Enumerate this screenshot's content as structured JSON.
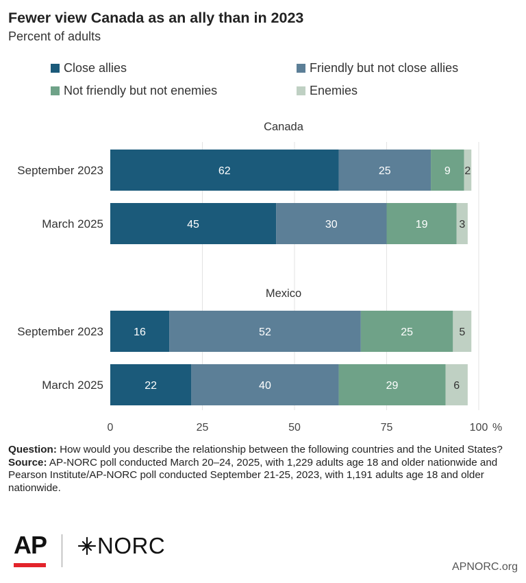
{
  "title": "Fewer view Canada as an ally than in 2023",
  "subtitle": "Percent of adults",
  "colors": {
    "close_allies": "#1b5a7a",
    "friendly": "#5c7f97",
    "not_friendly": "#6fa288",
    "enemies": "#bfd0c3"
  },
  "chart_data": {
    "type": "bar",
    "orientation": "horizontal",
    "stacked": true,
    "title": "Fewer view Canada as an ally than in 2023",
    "subtitle": "Percent of adults",
    "xlim": [
      0,
      100
    ],
    "xticks": [
      "0",
      "25",
      "50",
      "75",
      "100"
    ],
    "x_unit": "%",
    "grid": true,
    "legend_position": "top",
    "series_names": [
      "Close allies",
      "Friendly but not close allies",
      "Not friendly but not enemies",
      "Enemies"
    ],
    "groups": [
      {
        "name": "Canada",
        "rows": [
          {
            "label": "September 2023",
            "values": [
              62,
              25,
              9,
              2
            ]
          },
          {
            "label": "March 2025",
            "values": [
              45,
              30,
              19,
              3
            ]
          }
        ]
      },
      {
        "name": "Mexico",
        "rows": [
          {
            "label": "September 2023",
            "values": [
              16,
              52,
              25,
              5
            ]
          },
          {
            "label": "March 2025",
            "values": [
              22,
              40,
              29,
              6
            ]
          }
        ]
      }
    ]
  },
  "footer": {
    "question_label": "Question:",
    "question_text": " How would you describe the relationship between the following countries and the United States?",
    "source_label": "Source:",
    "source_text": " AP-NORC poll conducted March 20–24, 2025, with 1,229 adults age 18 and older nationwide and Pearson Institute/AP-NORC poll conducted September 21-25, 2023, with 1,191 adults age 18 and older nationwide."
  },
  "logos": {
    "ap": "AP",
    "norc": "NORC",
    "site": "APNORC.org"
  }
}
